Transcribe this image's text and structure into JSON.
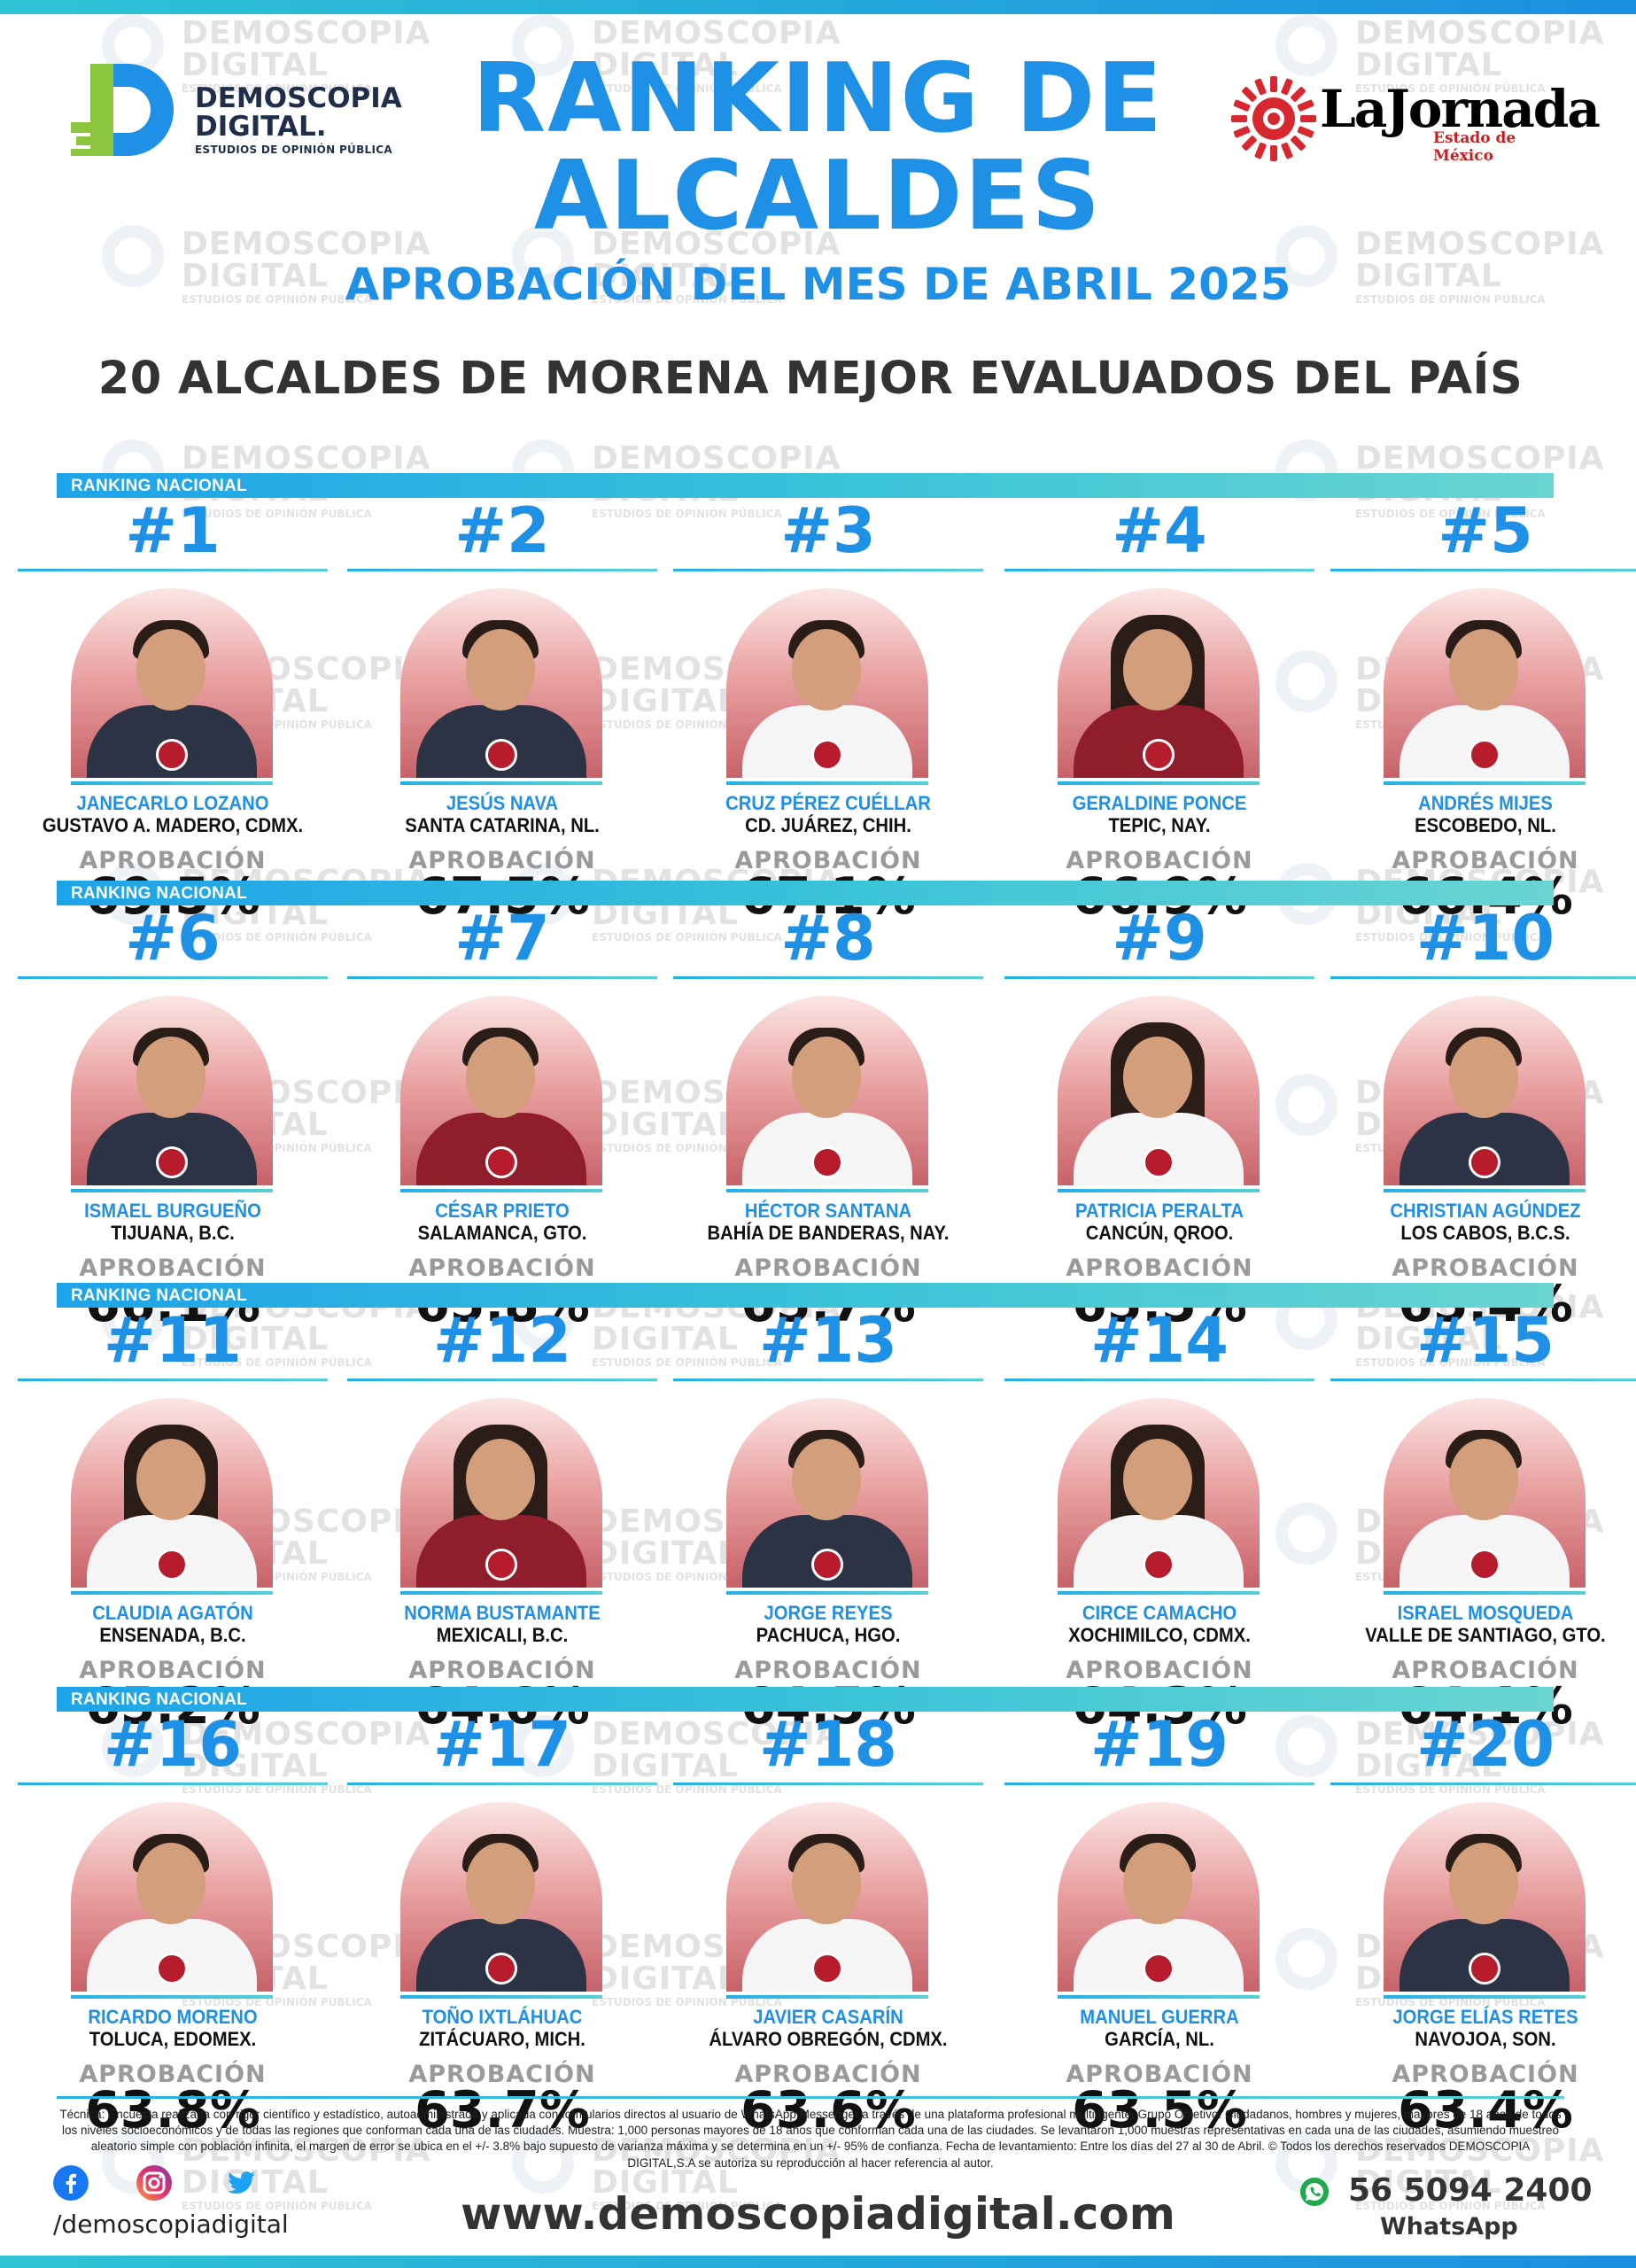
{
  "brand": {
    "logo_line1": "DEMOSCOPIA",
    "logo_line2": "DIGITAL.",
    "logo_tagline": "ESTUDIOS DE OPINIÓN PÚBLICA",
    "partner_name": "LaJornada",
    "partner_sub": "Estado de México"
  },
  "watermark": {
    "word1": "DEMOSCOPIA",
    "word2": "DIGITAL",
    "tagline": "ESTUDIOS DE OPINIÓN PÚBLICA"
  },
  "header": {
    "title_line1": "RANKING DE",
    "title_line2": "ALCALDES",
    "subtitle": "APROBACIÓN DEL MES DE ABRIL 2025",
    "headline": "20 ALCALDES DE MORENA MEJOR EVALUADOS DEL PAÍS"
  },
  "section_label": "RANKING NACIONAL",
  "approval_label": "APROBACIÓN",
  "mayors": [
    {
      "rank": "#1",
      "name": "JANECARLO LOZANO",
      "city": "GUSTAVO A. MADERO, CDMX.",
      "approval": "69.5%"
    },
    {
      "rank": "#2",
      "name": "JESÚS NAVA",
      "city": "SANTA CATARINA, NL.",
      "approval": "67.5%"
    },
    {
      "rank": "#3",
      "name": "CRUZ PÉREZ CUÉLLAR",
      "city": "CD. JUÁREZ, CHIH.",
      "approval": "67.1%"
    },
    {
      "rank": "#4",
      "name": "GERALDINE PONCE",
      "city": "TEPIC, NAY.",
      "approval": "66.9%"
    },
    {
      "rank": "#5",
      "name": "ANDRÉS MIJES",
      "city": "ESCOBEDO, NL.",
      "approval": "66.4%"
    },
    {
      "rank": "#6",
      "name": "ISMAEL BURGUEÑO",
      "city": "TIJUANA, B.C.",
      "approval": "66.1%"
    },
    {
      "rank": "#7",
      "name": "CÉSAR PRIETO",
      "city": "SALAMANCA, GTO.",
      "approval": "65.8%"
    },
    {
      "rank": "#8",
      "name": "HÉCTOR SANTANA",
      "city": "BAHÍA DE BANDERAS, NAY.",
      "approval": "65.7%"
    },
    {
      "rank": "#9",
      "name": "PATRICIA PERALTA",
      "city": "CANCÚN, QROO.",
      "approval": "65.5%"
    },
    {
      "rank": "#10",
      "name": "CHRISTIAN AGÚNDEZ",
      "city": "LOS CABOS, B.C.S.",
      "approval": "65.4%"
    },
    {
      "rank": "#11",
      "name": "CLAUDIA AGATÓN",
      "city": "ENSENADA, B.C.",
      "approval": "65.2%"
    },
    {
      "rank": "#12",
      "name": "NORMA BUSTAMANTE",
      "city": "MEXICALI, B.C.",
      "approval": "64.6%"
    },
    {
      "rank": "#13",
      "name": "JORGE REYES",
      "city": "PACHUCA, HGO.",
      "approval": "64.5%"
    },
    {
      "rank": "#14",
      "name": "CIRCE CAMACHO",
      "city": "XOCHIMILCO, CDMX.",
      "approval": "64.3%"
    },
    {
      "rank": "#15",
      "name": "ISRAEL MOSQUEDA",
      "city": "VALLE DE SANTIAGO, GTO.",
      "approval": "64.1%"
    },
    {
      "rank": "#16",
      "name": "RICARDO MORENO",
      "city": "TOLUCA, EDOMEX.",
      "approval": "63.8%"
    },
    {
      "rank": "#17",
      "name": "TOÑO IXTLÁHUAC",
      "city": "ZITÁCUARO, MICH.",
      "approval": "63.7%"
    },
    {
      "rank": "#18",
      "name": "JAVIER CASARÍN",
      "city": "ÁLVARO OBREGÓN, CDMX.",
      "approval": "63.6%"
    },
    {
      "rank": "#19",
      "name": "MANUEL GUERRA",
      "city": "GARCÍA, NL.",
      "approval": "63.5%"
    },
    {
      "rank": "#20",
      "name": "JORGE ELÍAS RETES",
      "city": "NAVOJOA, SON.",
      "approval": "63.4%"
    }
  ],
  "footer": {
    "technical_note": "Técnica: Encuesta realizada con rigor científico y estadístico, autoadministrada y aplicada con formularios directos al usuario de WhatsApp Messenger a través de una plataforma profesional multiagente. Grupo Objetivo: Ciudadanos, hombres y mujeres, mayores de 18 años de todos los niveles socioeconómicos y de todas las regiones que conforman cada una de las ciudades. Muestra: 1,000 personas mayores de 18 años que conforman cada una de las ciudades. Se levantaron 1,000 muestras representativas en cada una de las ciudades, asumiendo muestreo aleatorio simple con población infinita, el margen de error se ubica en el +/- 3.8% bajo supuesto de varianza máxima y se determina en un +/- 95% de confianza. Fecha de levantamiento: Entre los días del 27 al 30 de Abril. © Todos los derechos reservados DEMOSCOPIA DIGITAL,S.A se autoriza su reproducción al hacer referencia al autor.",
    "social_handle": "/demoscopiadigital",
    "website": "www.demoscopiadigital.com",
    "whatsapp_number": "56 5094 2400",
    "whatsapp_label": "WhatsApp"
  },
  "colors": {
    "accent_blue": "#1e90e6",
    "bar_teal": "#3cc4d8",
    "photo_red": "#c6626a",
    "morena_red": "#b71c2c"
  },
  "icons": [
    "facebook-icon",
    "instagram-icon",
    "twitter-icon",
    "whatsapp-icon"
  ]
}
